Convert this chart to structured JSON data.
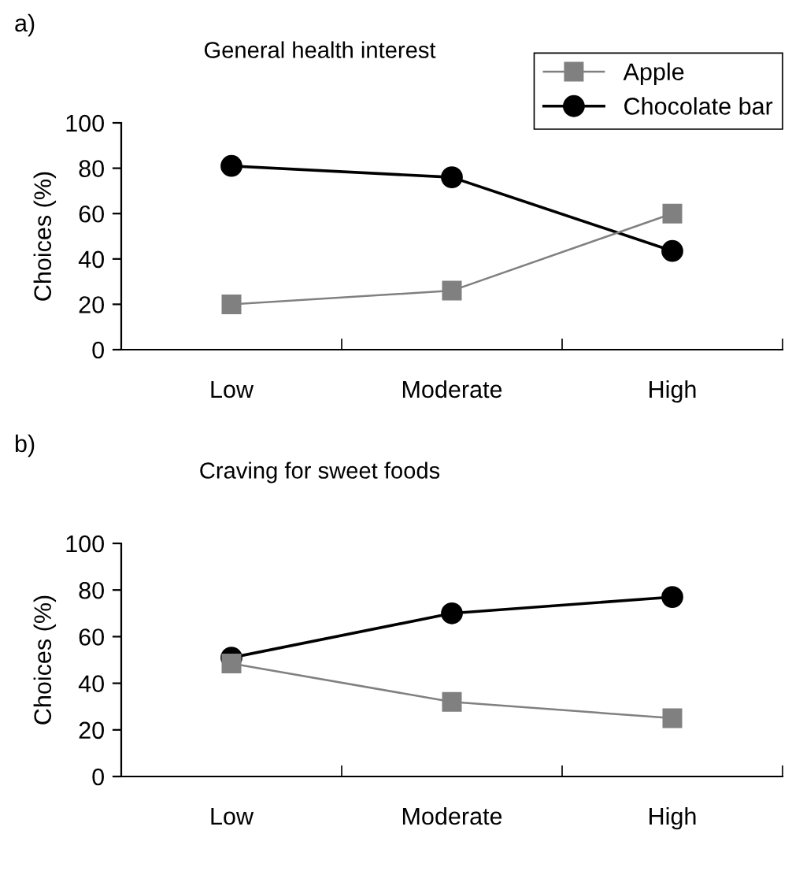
{
  "chart_data": [
    {
      "type": "line",
      "title": "General health interest",
      "ylabel": "Choices (%)",
      "annotations": [
        "a)"
      ],
      "categories": [
        "Low",
        "Moderate",
        "High"
      ],
      "ylim": [
        0,
        100
      ],
      "yticks": [
        0,
        20,
        40,
        60,
        80,
        100
      ],
      "grid": false,
      "legend": "top right",
      "series": [
        {
          "name": "Apple",
          "color": "#808080",
          "marker": "square",
          "values": [
            20,
            26,
            60
          ]
        },
        {
          "name": "Chocolate bar",
          "color": "#000000",
          "marker": "circle",
          "values": [
            81,
            76,
            43.5
          ]
        }
      ]
    },
    {
      "type": "line",
      "title": "Craving for sweet foods",
      "ylabel": "Choices (%)",
      "annotations": [
        "b)"
      ],
      "categories": [
        "Low",
        "Moderate",
        "High"
      ],
      "ylim": [
        0,
        100
      ],
      "yticks": [
        0,
        20,
        40,
        60,
        80,
        100
      ],
      "grid": false,
      "legend": false,
      "series": [
        {
          "color": "#808080",
          "marker": "square",
          "values": [
            48.5,
            32,
            25
          ]
        },
        {
          "color": "#000000",
          "marker": "circle",
          "values": [
            51,
            70,
            77
          ]
        }
      ]
    }
  ]
}
